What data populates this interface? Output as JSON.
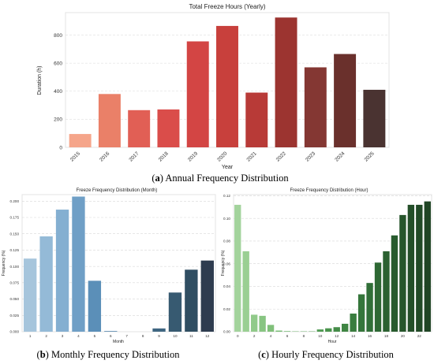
{
  "captions": {
    "a_letter": "a",
    "a_text": " Annual Frequency Distribution",
    "b_letter": "b",
    "b_text": " Monthly Frequency Distribution",
    "c_letter": "c",
    "c_text": " Hourly Frequency Distribution"
  },
  "chart_data": [
    {
      "id": "annual",
      "type": "bar",
      "title": "Total Freeze Hours (Yearly)",
      "xlabel": "Year",
      "ylabel": "Duration (h)",
      "categories": [
        "2015",
        "2016",
        "2017",
        "2018",
        "2019",
        "2020",
        "2021",
        "2022",
        "2023",
        "2024",
        "2025"
      ],
      "values": [
        95,
        380,
        265,
        270,
        755,
        865,
        390,
        925,
        570,
        665,
        410
      ],
      "ylim": [
        0,
        960
      ],
      "yticks": [
        0,
        200,
        400,
        600,
        800
      ],
      "colors": [
        "#f5a58a",
        "#ea8068",
        "#e15f55",
        "#da4d4a",
        "#d34544",
        "#c8403c",
        "#b83a37",
        "#9c3430",
        "#843733",
        "#6a302c",
        "#4a3331"
      ],
      "grid": "horizontal dashed"
    },
    {
      "id": "monthly",
      "type": "bar",
      "title": "Freeze Frequency Distribution (Month)",
      "xlabel": "Month",
      "ylabel": "Frequency (%)",
      "categories": [
        "1",
        "2",
        "3",
        "4",
        "5",
        "6",
        "7",
        "8",
        "9",
        "10",
        "11",
        "12"
      ],
      "values": [
        0.112,
        0.146,
        0.187,
        0.207,
        0.078,
        0.001,
        0.0,
        0.0,
        0.005,
        0.06,
        0.095,
        0.109
      ],
      "ylim": [
        0,
        0.21
      ],
      "yticks": [
        "0.000",
        "0.025",
        "0.050",
        "0.075",
        "0.100",
        "0.125",
        "0.150",
        "0.175",
        "0.200"
      ],
      "colors": [
        "#a6c5dc",
        "#94bad7",
        "#84afd1",
        "#6f9fc6",
        "#5b8fb8",
        "#5485ac",
        "#4e7b9f",
        "#477190",
        "#3f6681",
        "#375a71",
        "#304e62",
        "#2e3c4f"
      ],
      "grid": "horizontal dashed"
    },
    {
      "id": "hourly",
      "type": "bar",
      "title": "Freeze Frequency Distribution (Hour)",
      "xlabel": "Hour",
      "ylabel": "Frequency (%)",
      "categories": [
        "0",
        "1",
        "2",
        "3",
        "4",
        "5",
        "6",
        "7",
        "8",
        "9",
        "10",
        "11",
        "12",
        "13",
        "14",
        "15",
        "16",
        "17",
        "18",
        "19",
        "20",
        "21",
        "22",
        "23"
      ],
      "values": [
        0.112,
        0.071,
        0.015,
        0.014,
        0.006,
        0.001,
        0.0005,
        0.0003,
        0.0003,
        0.0003,
        0.002,
        0.003,
        0.004,
        0.007,
        0.016,
        0.033,
        0.043,
        0.061,
        0.071,
        0.085,
        0.103,
        0.112,
        0.112,
        0.115
      ],
      "ylim": [
        0,
        0.121
      ],
      "yticks": [
        "0.00",
        "0.02",
        "0.04",
        "0.06",
        "0.08",
        "0.10",
        "0.12"
      ],
      "xtick_labels": [
        "0",
        "2",
        "4",
        "6",
        "8",
        "10",
        "12",
        "14",
        "16",
        "18",
        "20",
        "22"
      ],
      "colors": [
        "#a3d39c",
        "#9acf93",
        "#91ca8a",
        "#88c582",
        "#80c07a",
        "#77bb73",
        "#6eb56b",
        "#66af65",
        "#5ea95e",
        "#57a258",
        "#509b52",
        "#4a944d",
        "#448c48",
        "#3f8543",
        "#3a7d3f",
        "#35763b",
        "#316f38",
        "#2e6834",
        "#2b6131",
        "#285b2e",
        "#26552b",
        "#244f29",
        "#224a27",
        "#204525"
      ],
      "grid": "horizontal dashed"
    }
  ]
}
